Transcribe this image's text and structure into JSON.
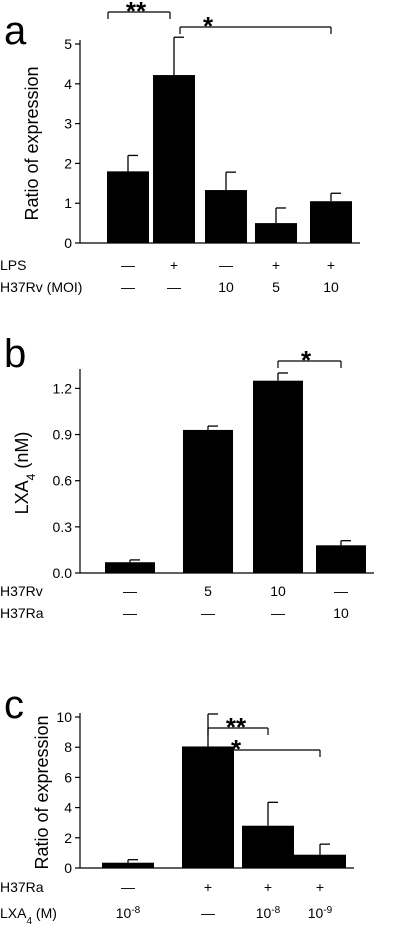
{
  "chart_data": [
    {
      "type": "bar",
      "panel_label": "a",
      "ylabel": "Ratio of expression",
      "ylim": [
        0,
        5
      ],
      "yticks": [
        "0",
        "1",
        "2",
        "3",
        "4",
        "5"
      ],
      "values": [
        1.8,
        4.22,
        1.33,
        0.5,
        1.05
      ],
      "errors": [
        0.4,
        0.95,
        0.45,
        0.38,
        0.2
      ],
      "conditions": [
        {
          "label": "LPS",
          "values": [
            "—",
            "+",
            "—",
            "+",
            "+"
          ]
        },
        {
          "label": "H37Rv (MOI)",
          "values": [
            "—",
            "—",
            "10",
            "5",
            "10"
          ]
        }
      ],
      "significance": [
        {
          "from": 0,
          "to": 1,
          "label": "**"
        },
        {
          "from": 1,
          "to": 4,
          "label": "*"
        }
      ]
    },
    {
      "type": "bar",
      "panel_label": "b",
      "ylabel_main": "LXA",
      "ylabel_sub": "4",
      "ylabel_unit": " (nM)",
      "ylim": [
        0,
        1.3
      ],
      "yticks": [
        "0.0",
        "0.3",
        "0.6",
        "0.9",
        "1.2"
      ],
      "values": [
        0.07,
        0.93,
        1.25,
        0.18
      ],
      "errors": [
        0.015,
        0.025,
        0.05,
        0.03
      ],
      "conditions": [
        {
          "label": "H37Rv",
          "values": [
            "—",
            "5",
            "10",
            "—"
          ]
        },
        {
          "label": "H37Ra",
          "values": [
            "—",
            "—",
            "—",
            "10"
          ]
        }
      ],
      "significance": [
        {
          "from": 2,
          "to": 3,
          "label": "*"
        }
      ]
    },
    {
      "type": "bar",
      "panel_label": "c",
      "ylabel": "Ratio of expression",
      "ylim": [
        0,
        10
      ],
      "yticks": [
        "0",
        "2",
        "4",
        "6",
        "8",
        "10"
      ],
      "values": [
        0.35,
        8.05,
        2.8,
        0.88
      ],
      "errors": [
        0.2,
        2.15,
        1.55,
        0.7
      ],
      "conditions": [
        {
          "label": "H37Ra",
          "values": [
            "—",
            "+",
            "+",
            "+"
          ]
        },
        {
          "label_main": "LXA",
          "label_sub": "4",
          "label_unit": " (M)",
          "values": [
            {
              "base": "10",
              "exp": "-8"
            },
            {
              "base": "—",
              "exp": ""
            },
            {
              "base": "10",
              "exp": "-8"
            },
            {
              "base": "10",
              "exp": "-9"
            }
          ]
        }
      ],
      "significance": [
        {
          "from": 1,
          "to": 2,
          "label": "**"
        },
        {
          "from": 1,
          "to": 3,
          "label": "*"
        }
      ]
    }
  ]
}
